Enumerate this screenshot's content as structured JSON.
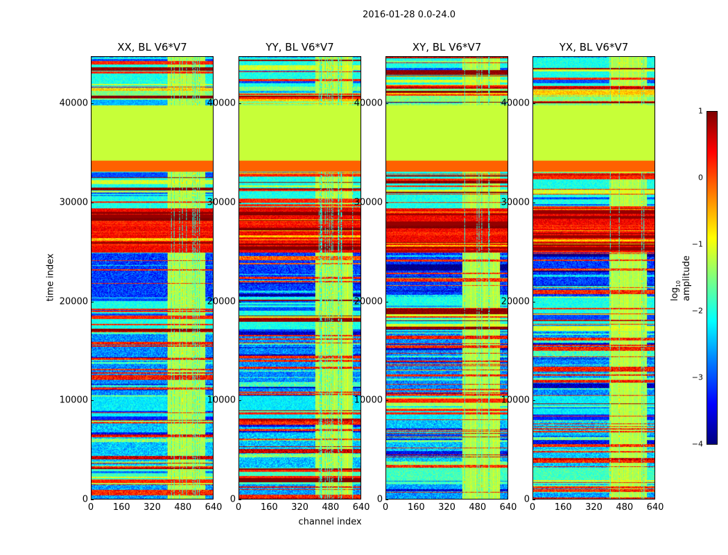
{
  "title": "2016-01-28 0.0-24.0",
  "chart_data": {
    "type": "heatmap",
    "panels": [
      {
        "title": "XX, BL V6*V7"
      },
      {
        "title": "YY, BL V6*V7"
      },
      {
        "title": "XY, BL V6*V7"
      },
      {
        "title": "YX, BL V6*V7"
      }
    ],
    "xlabel": "channel index",
    "ylabel": "time index",
    "xlim": [
      0,
      640
    ],
    "ylim": [
      0,
      44800
    ],
    "xticks": [
      "0",
      "160",
      "320",
      "480",
      "640"
    ],
    "yticks": [
      "0",
      "10000",
      "20000",
      "30000",
      "40000"
    ],
    "colorbar": {
      "label": "log10 amplitude",
      "range": [
        -4,
        1
      ],
      "ticks": [
        "1",
        "0",
        "−1",
        "−2",
        "−3",
        "−4"
      ],
      "colormap": "jet"
    },
    "bands": [
      [
        0,
        1500,
        -2.6,
        "noise"
      ],
      [
        1500,
        3200,
        -1.8,
        "stripe"
      ],
      [
        3200,
        8000,
        -2.4,
        "noise"
      ],
      [
        8000,
        10500,
        -2.2,
        "stripe"
      ],
      [
        10500,
        17000,
        -2.7,
        "noise"
      ],
      [
        17000,
        20500,
        -2.0,
        "stripe"
      ],
      [
        20500,
        25000,
        -3.1,
        "noise"
      ],
      [
        25000,
        29500,
        0.4,
        "stripe"
      ],
      [
        29500,
        33200,
        -2.0,
        "stripe"
      ],
      [
        33200,
        34300,
        -0.1,
        "flat"
      ],
      [
        34300,
        39900,
        -1.15,
        "flat"
      ],
      [
        39900,
        41800,
        -1.5,
        "stripe"
      ],
      [
        41800,
        44800,
        -2.0,
        "stripe"
      ]
    ],
    "rfi_channels": [
      400,
      600
    ]
  }
}
